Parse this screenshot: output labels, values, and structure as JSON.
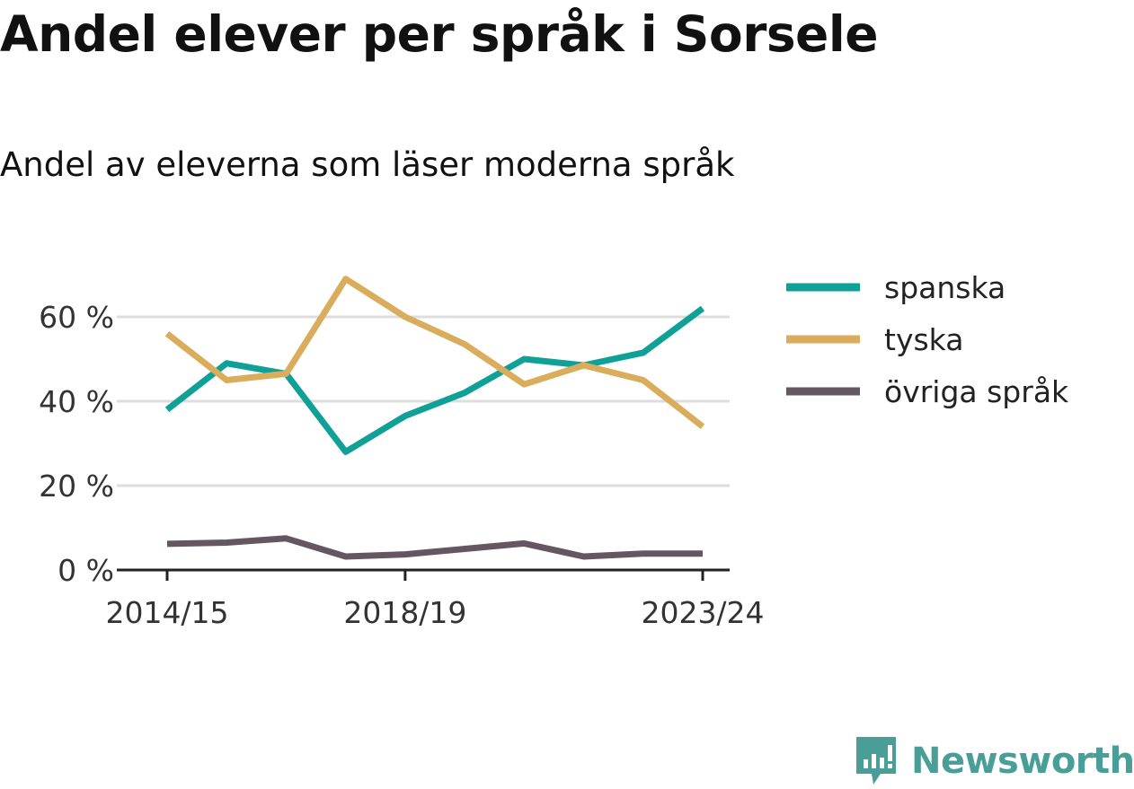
{
  "title": "Andel elever per språk i Sorsele",
  "subtitle": "Andel av eleverna som läser moderna språk",
  "brand": {
    "name": "Newsworthy",
    "icon": "newsworthy-logo-icon",
    "color": "#4a9e98"
  },
  "chart_data": {
    "type": "line",
    "x": [
      "2014/15",
      "2015/16",
      "2016/17",
      "2017/18",
      "2018/19",
      "2019/20",
      "2020/21",
      "2021/22",
      "2022/23",
      "2023/24"
    ],
    "x_tick_labels": [
      "2014/15",
      "2018/19",
      "2023/24"
    ],
    "y_ticks": [
      0,
      20,
      40,
      60
    ],
    "y_tick_labels": [
      "0 %",
      "20 %",
      "40 %",
      "60 %"
    ],
    "ylim": [
      0,
      70
    ],
    "grid": true,
    "legend_position": "right",
    "series": [
      {
        "name": "spanska",
        "color": "#0fa197",
        "values": [
          38.0,
          49.0,
          46.5,
          28.0,
          36.5,
          42.0,
          50.0,
          48.5,
          51.5,
          62.0
        ]
      },
      {
        "name": "tyska",
        "color": "#d9ad5b",
        "values": [
          56.0,
          45.0,
          46.5,
          69.0,
          60.0,
          53.5,
          44.0,
          48.5,
          45.0,
          34.0
        ]
      },
      {
        "name": "övriga språk",
        "color": "#655762",
        "values": [
          6.2,
          6.5,
          7.5,
          3.2,
          3.7,
          5.0,
          6.3,
          3.2,
          3.9,
          3.9
        ]
      }
    ]
  }
}
